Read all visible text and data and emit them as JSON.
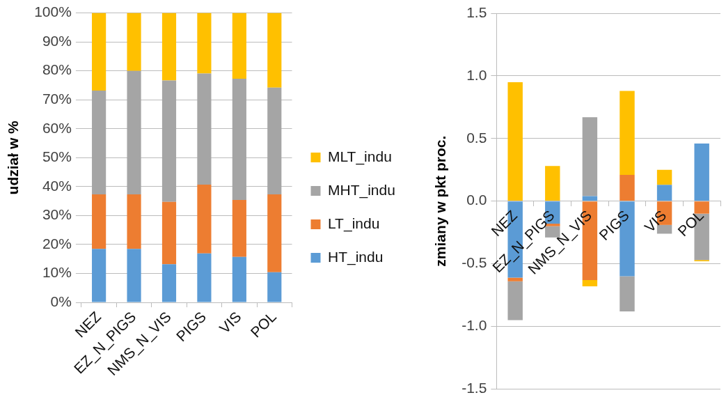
{
  "chart_data": [
    {
      "type": "bar",
      "stacked": true,
      "ylabel": "udział w %",
      "categories": [
        "NEZ",
        "EZ_N_PIGS",
        "NMS_N_VIS",
        "PIGS",
        "VIS",
        "POL"
      ],
      "series": [
        {
          "name": "HT_indu",
          "color": "#5b9bd5",
          "values": [
            18.5,
            18.5,
            13.2,
            16.9,
            15.7,
            10.4
          ]
        },
        {
          "name": "LT_indu",
          "color": "#ed7d31",
          "values": [
            18.8,
            18.8,
            21.5,
            23.8,
            19.7,
            26.9
          ]
        },
        {
          "name": "MHT_indu",
          "color": "#a5a5a5",
          "values": [
            35.9,
            42.7,
            42.0,
            38.4,
            41.9,
            36.9
          ]
        },
        {
          "name": "MLT_indu",
          "color": "#ffc000",
          "values": [
            26.8,
            20.0,
            23.3,
            20.9,
            22.7,
            25.8
          ]
        }
      ],
      "ylim": [
        0,
        100
      ],
      "yticks": [
        {
          "value": 0,
          "label": "0%"
        },
        {
          "value": 10,
          "label": "10%"
        },
        {
          "value": 20,
          "label": "20%"
        },
        {
          "value": 30,
          "label": "30%"
        },
        {
          "value": 40,
          "label": "40%"
        },
        {
          "value": 50,
          "label": "50%"
        },
        {
          "value": 60,
          "label": "60%"
        },
        {
          "value": 70,
          "label": "70%"
        },
        {
          "value": 80,
          "label": "80%"
        },
        {
          "value": 90,
          "label": "90%"
        },
        {
          "value": 100,
          "label": "100%"
        }
      ],
      "grid": "y",
      "legend": "right"
    },
    {
      "type": "bar",
      "stacked": true,
      "ylabel": "zmiany w pkt proc.",
      "categories": [
        "NEZ",
        "EZ_N_PIGS",
        "NMS_N_VIS",
        "PIGS",
        "VIS",
        "POL"
      ],
      "series": [
        {
          "color": "#5b9bd5",
          "values": [
            -0.61,
            -0.18,
            0.04,
            -0.6,
            0.13,
            0.46
          ]
        },
        {
          "color": "#ed7d31",
          "values": [
            -0.03,
            -0.02,
            -0.63,
            0.21,
            -0.19,
            -0.1
          ]
        },
        {
          "color": "#a5a5a5",
          "values": [
            -0.31,
            -0.09,
            0.63,
            -0.28,
            -0.07,
            -0.37
          ]
        },
        {
          "color": "#ffc000",
          "values": [
            0.95,
            0.28,
            -0.05,
            0.67,
            0.12,
            -0.01
          ]
        }
      ],
      "ylim": [
        -1.5,
        1.5
      ],
      "yticks": [
        -1.5,
        {
          "value": -1,
          "label": "-1.0"
        },
        -0.5,
        {
          "value": 0,
          "label": "0.0"
        },
        0.5,
        {
          "value": 1,
          "label": "1.0"
        },
        1.5
      ],
      "grid": "y"
    }
  ]
}
